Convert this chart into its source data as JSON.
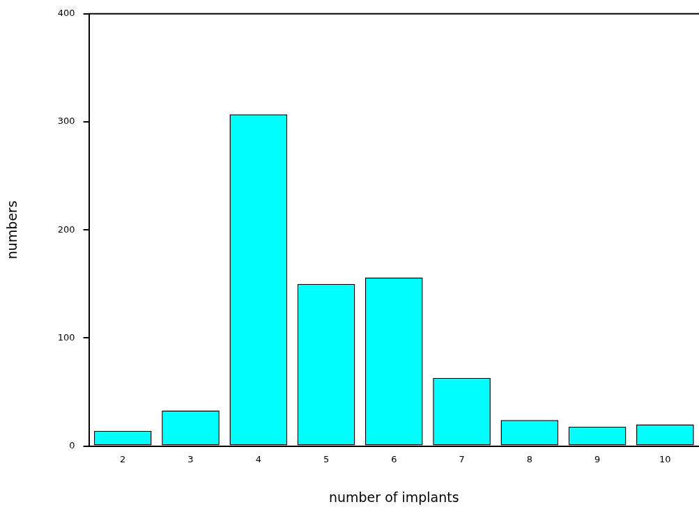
{
  "chart_data": {
    "type": "bar",
    "xlabel": "number of implants",
    "ylabel": "numbers",
    "categories": [
      "2",
      "3",
      "4",
      "5",
      "6",
      "7",
      "8",
      "9",
      "10"
    ],
    "values": [
      14,
      33,
      307,
      150,
      156,
      63,
      24,
      18,
      20
    ],
    "color": "#00ffff",
    "ylim": [
      0,
      400
    ],
    "yticks": [
      0,
      100,
      200,
      300,
      400
    ],
    "grid": false,
    "legend": false
  }
}
